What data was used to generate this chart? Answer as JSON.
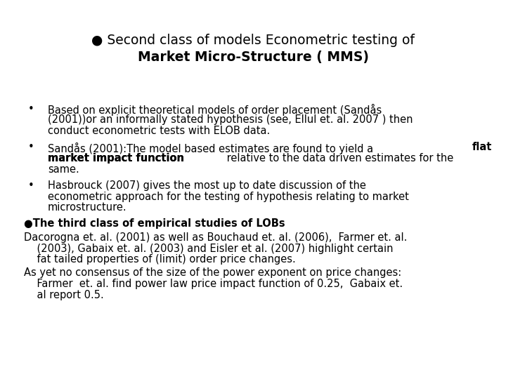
{
  "bg_color": "#ffffff",
  "font_family": "DejaVu Sans",
  "title_fontsize": 13.5,
  "body_fontsize": 10.5,
  "title_line1": "● Second class of models Econometric testing of",
  "title_line2": "Market Micro-Structure ( MMS)",
  "b1": "Based on explicit theoretical models of order placement (Sandås\n(2001))or an informally stated hypothesis (see, Ellul et. al. 2007 ) then\nconduct econometric tests with ELOB data.",
  "b2_pre": "Sandås (2001):The model based estimates are found to yield a ",
  "b2_bold1": "flat",
  "b2_bold2": "market impact function",
  "b2_post": " relative to the data driven estimates for the",
  "b2_end": "same.",
  "b3": "Hasbrouck (2007) gives the most up to date discussion of the\neconometric approach for the testing of hypothesis relating to market\nmicrostructure.",
  "section": "●The third class of empirical studies of LOBs",
  "p1_line1": "Dacorogna et. al. (2001) as well as Bouchaud et. al. (2006),  Farmer et. al.",
  "p1_line2": "    (2003), Gabaix et. al. (2003) and Eisler et al. (2007) highlight certain",
  "p1_line3": "    fat tailed properties of (limit) order price changes.",
  "p2_line1": "As yet no consensus of the size of the power exponent on price changes:",
  "p2_line2": "    Farmer  et. al. find power law price impact function of 0.25,  Gabaix et.",
  "p2_line3": "    al report 0.5."
}
